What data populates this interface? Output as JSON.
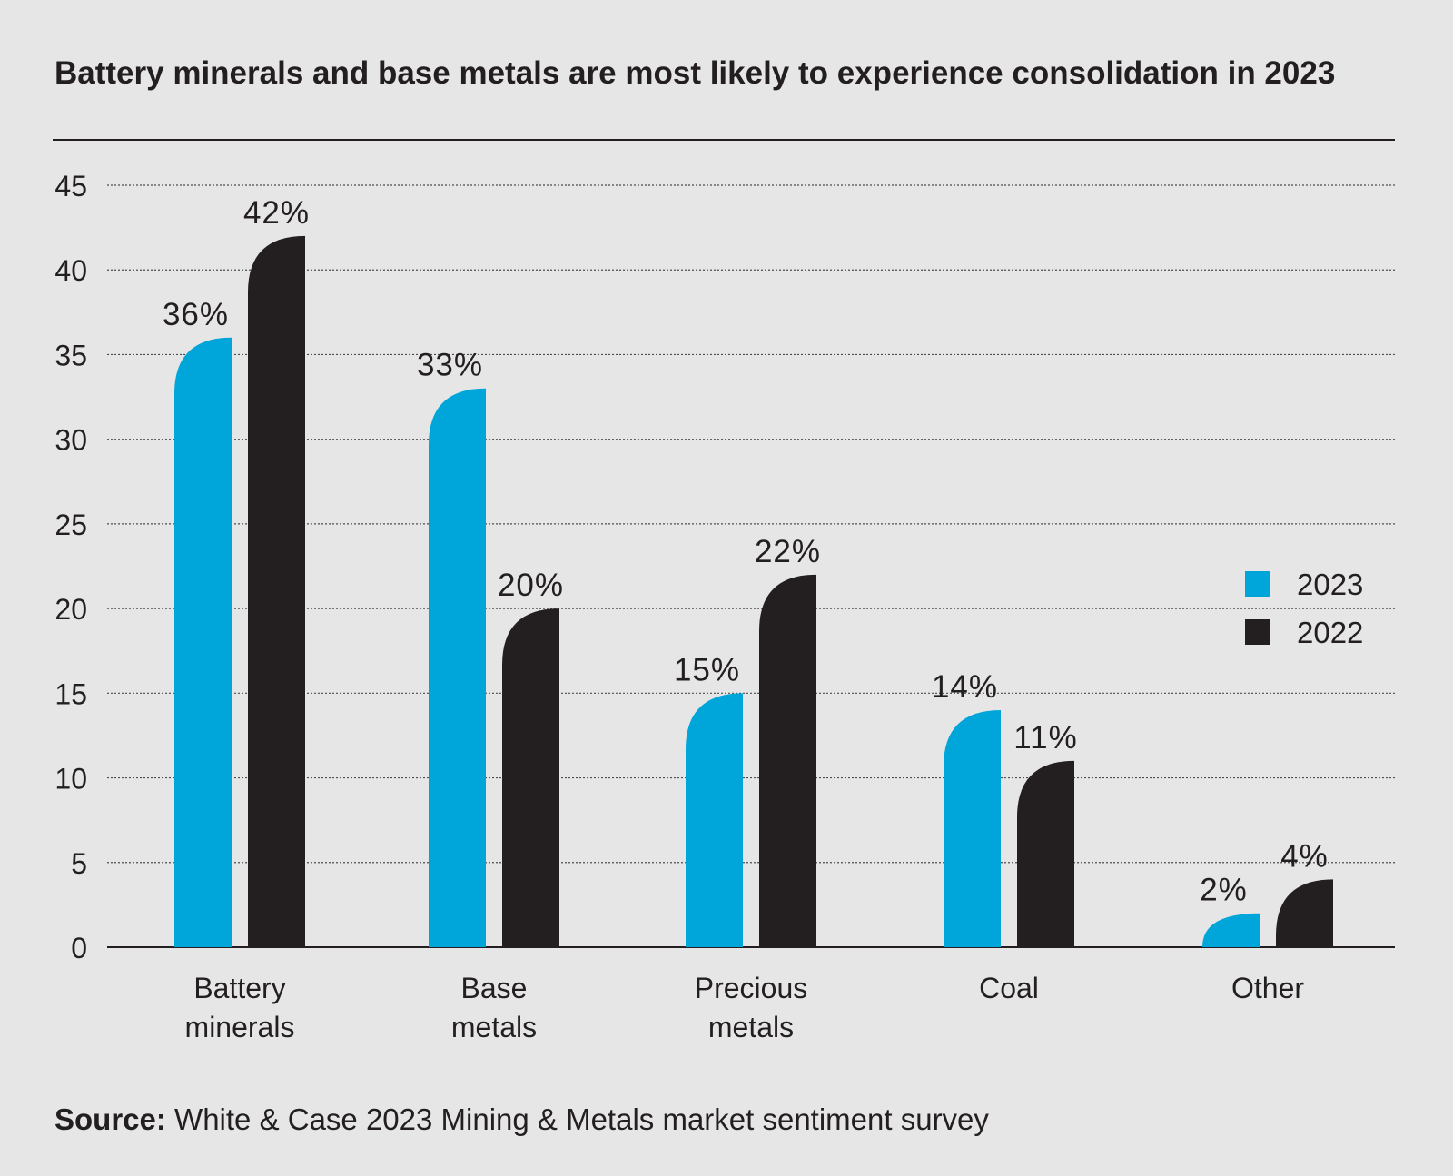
{
  "title": "Battery minerals and base metals are most likely to experience consolidation in 2023",
  "source": {
    "label": "Source:",
    "text": "White & Case 2023 Mining & Metals market sentiment survey"
  },
  "colors": {
    "series_2023": "#00a5d9",
    "series_2022": "#231f20",
    "background": "#e6e6e6",
    "grid": "#4d4d4d"
  },
  "chart_data": {
    "type": "bar",
    "title": "Battery minerals and base metals are most likely to experience consolidation in 2023",
    "xlabel": "",
    "ylabel": "",
    "ylim": [
      0,
      45
    ],
    "yticks": [
      0,
      5,
      10,
      15,
      20,
      25,
      30,
      35,
      40,
      45
    ],
    "grid": true,
    "legend_position": "right",
    "categories": [
      [
        "Battery",
        "minerals"
      ],
      [
        "Base",
        "metals"
      ],
      [
        "Precious",
        "metals"
      ],
      [
        "Coal"
      ],
      [
        "Other"
      ]
    ],
    "series": [
      {
        "name": "2023",
        "color": "#00a5d9",
        "values": [
          36,
          33,
          15,
          14,
          2
        ],
        "labels": [
          "36%",
          "33%",
          "15%",
          "14%",
          "2%"
        ]
      },
      {
        "name": "2022",
        "color": "#231f20",
        "values": [
          42,
          20,
          22,
          11,
          4
        ],
        "labels": [
          "42%",
          "20%",
          "22%",
          "11%",
          "4%"
        ]
      }
    ]
  }
}
